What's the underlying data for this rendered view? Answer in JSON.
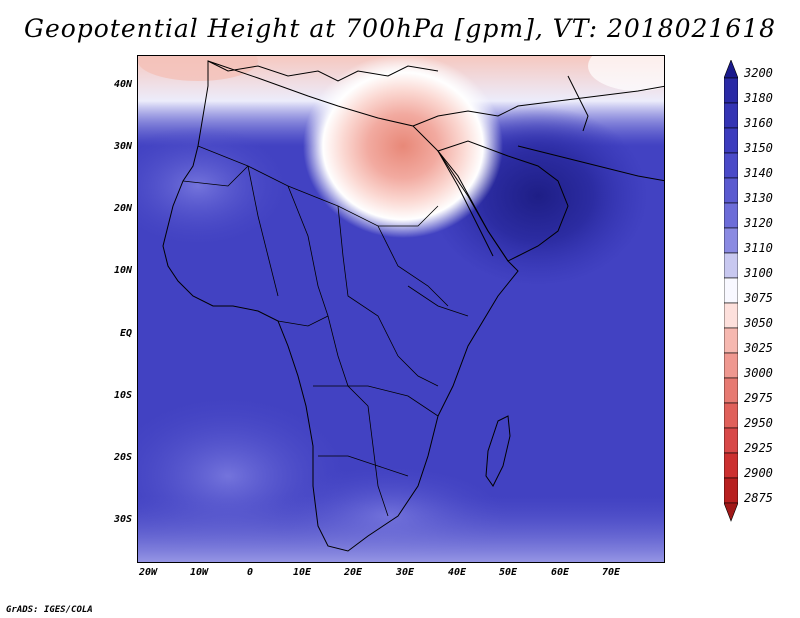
{
  "title": "Geopotential Height at 700hPa [gpm], VT: 2018021618",
  "credit": "GrADS: IGES/COLA",
  "lat_labels": [
    "40N",
    "30N",
    "20N",
    "10N",
    "EQ",
    "10S",
    "20S",
    "30S"
  ],
  "lon_labels": [
    "20W",
    "10W",
    "0",
    "10E",
    "20E",
    "30E",
    "40E",
    "50E",
    "60E",
    "70E"
  ],
  "colorbar": {
    "levels": [
      "3200",
      "3180",
      "3160",
      "3150",
      "3140",
      "3130",
      "3120",
      "3110",
      "3100",
      "3075",
      "3050",
      "3025",
      "3000",
      "2975",
      "2950",
      "2925",
      "2900",
      "2875"
    ],
    "colors": [
      "#1a1a8c",
      "#2a2aa6",
      "#3434b4",
      "#3c3cbe",
      "#4a4ac8",
      "#5a5ad0",
      "#6c6cd8",
      "#8a8ae2",
      "#c8c8f0",
      "#f8f8ff",
      "#fde0dc",
      "#f6b8b0",
      "#ef9890",
      "#e77a72",
      "#e0605a",
      "#d84848",
      "#cc3030",
      "#b82020",
      "#a01818"
    ]
  }
}
